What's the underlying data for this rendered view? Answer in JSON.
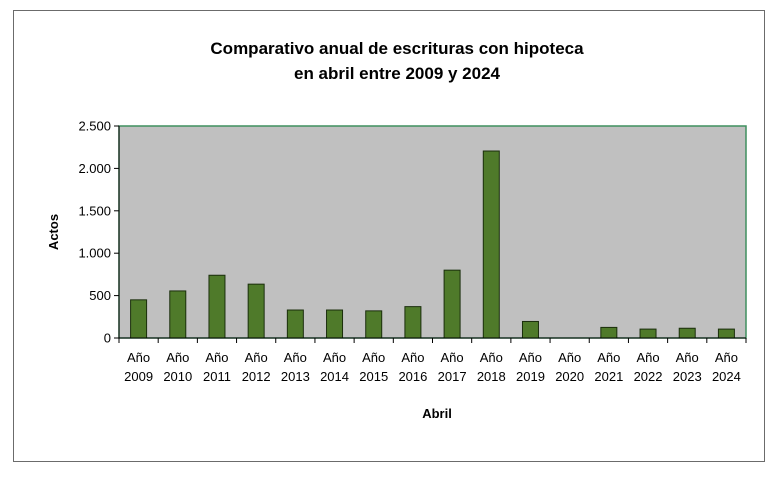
{
  "chart_data": {
    "type": "bar",
    "title_lines": [
      "Comparativo anual de escrituras con hipoteca",
      "en abril entre 2009 y 2024"
    ],
    "xlabel": "Abril",
    "ylabel": "Actos",
    "categories": [
      [
        "Año",
        "2009"
      ],
      [
        "Año",
        "2010"
      ],
      [
        "Año",
        "2011"
      ],
      [
        "Año",
        "2012"
      ],
      [
        "Año",
        "2013"
      ],
      [
        "Año",
        "2014"
      ],
      [
        "Año",
        "2015"
      ],
      [
        "Año",
        "2016"
      ],
      [
        "Año",
        "2017"
      ],
      [
        "Año",
        "2018"
      ],
      [
        "Año",
        "2019"
      ],
      [
        "Año",
        "2020"
      ],
      [
        "Año",
        "2021"
      ],
      [
        "Año",
        "2022"
      ],
      [
        "Año",
        "2023"
      ],
      [
        "Año",
        "2024"
      ]
    ],
    "values": [
      450,
      555,
      740,
      635,
      330,
      330,
      320,
      370,
      800,
      2205,
      195,
      0,
      125,
      105,
      115,
      105
    ],
    "ylim": [
      0,
      2500
    ],
    "yticks": [
      0,
      500,
      1000,
      1500,
      2000,
      2500
    ],
    "ytick_labels": [
      "0",
      "500",
      "1.000",
      "1.500",
      "2.000",
      "2.500"
    ],
    "grid": false,
    "legend": "none",
    "colors": {
      "bar_fill": "#4f7a2a",
      "bar_stroke": "#1a2e0c",
      "plot_background": "#c0c0c0",
      "plot_border": "#3f8f5f"
    }
  }
}
